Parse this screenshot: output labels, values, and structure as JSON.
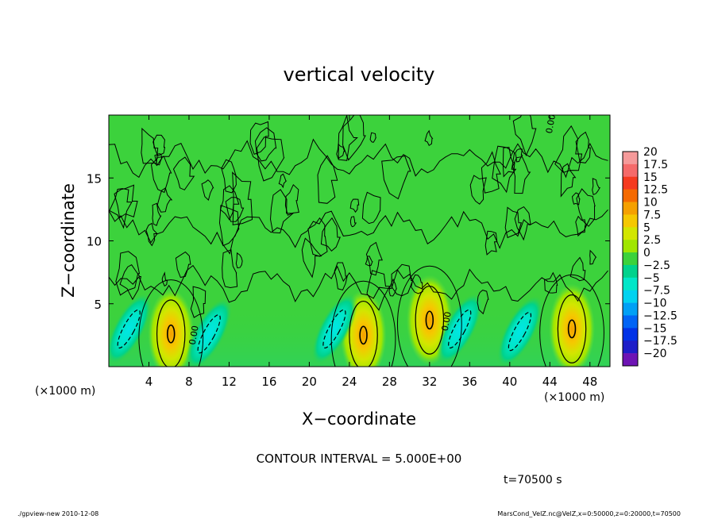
{
  "chart_data": {
    "type": "heatmap",
    "title": "vertical velocity",
    "xlabel": "X−coordinate",
    "ylabel": "Z−coordinate",
    "x_unit_left": "(×1000 m)",
    "x_unit_right": "(×1000 m)",
    "xlim": [
      0,
      50
    ],
    "ylim": [
      0,
      20
    ],
    "x_ticks": [
      4,
      8,
      12,
      16,
      20,
      24,
      28,
      32,
      36,
      40,
      44,
      48
    ],
    "x_tick_labels": [
      "4",
      "8",
      "12",
      "16",
      "20",
      "24",
      "28",
      "32",
      "36",
      "40",
      "44",
      "48"
    ],
    "y_ticks": [
      5,
      10,
      15
    ],
    "y_tick_labels": [
      "5",
      "10",
      "15"
    ],
    "colorbar": {
      "levels": [
        20,
        17.5,
        15,
        12.5,
        10,
        7.5,
        5,
        2.5,
        0,
        -2.5,
        -5,
        -7.5,
        -10,
        -12.5,
        -15,
        -17.5,
        -20
      ],
      "labels": [
        "20",
        "17.5",
        "15",
        "12.5",
        "10",
        "7.5",
        "5",
        "2.5",
        "0",
        "−2.5",
        "−5",
        "−7.5",
        "−10",
        "−12.5",
        "−15",
        "−17.5",
        "−20"
      ],
      "colors": [
        "#f59a9a",
        "#f56a6a",
        "#f53a20",
        "#f56a00",
        "#f5a000",
        "#f5c800",
        "#d2e600",
        "#a0e600",
        "#3cd23c",
        "#00d28c",
        "#00e6c8",
        "#00d2f0",
        "#00a0f5",
        "#0064f5",
        "#0032e6",
        "#1e1ec8",
        "#6e14b4"
      ]
    },
    "updrafts": [
      {
        "x": 6.2,
        "z": 2.6,
        "peak": 6.5
      },
      {
        "x": 25.4,
        "z": 2.5,
        "peak": 6.0
      },
      {
        "x": 32.0,
        "z": 3.7,
        "peak": 6.5
      },
      {
        "x": 46.2,
        "z": 3.0,
        "peak": 6.5
      }
    ],
    "downdrafts": [
      {
        "x": 2.0,
        "z": 3.0,
        "peak": -6.5
      },
      {
        "x": 10.0,
        "z": 2.6,
        "peak": -5.5
      },
      {
        "x": 22.5,
        "z": 3.0,
        "peak": -6.0
      },
      {
        "x": 35.0,
        "z": 3.0,
        "peak": -4.5
      },
      {
        "x": 41.0,
        "z": 2.8,
        "peak": -6.0
      }
    ],
    "contour_labels": [
      {
        "text": "0.00",
        "x": 8.6,
        "z": 1.7
      },
      {
        "text": "0.00",
        "x": 33.8,
        "z": 2.8
      },
      {
        "text": "0.00",
        "x": 44.2,
        "z": 18.5
      }
    ],
    "contour_interval_text": "CONTOUR INTERVAL = 5.000E+00",
    "time_text": "t=70500  s",
    "footer_left": "./gpview-new   2010-12-08",
    "footer_right": "MarsCond_VelZ.nc@VelZ,x=0:50000,z=0:20000,t=70500"
  }
}
